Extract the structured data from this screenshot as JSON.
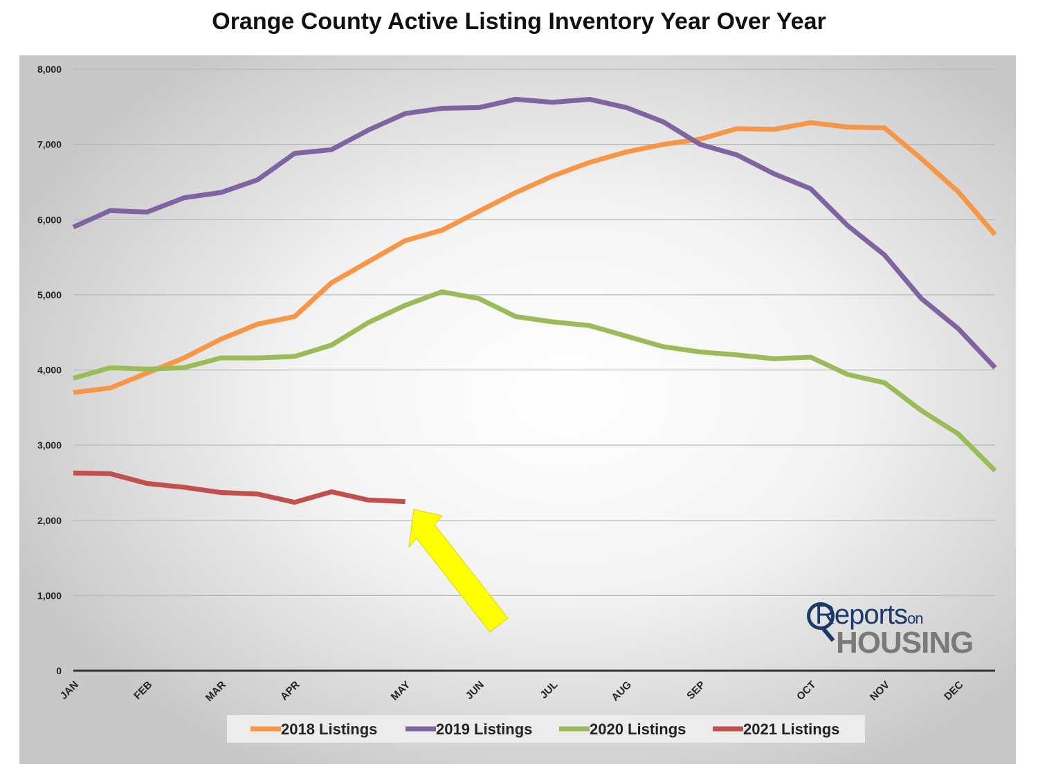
{
  "chart_data": {
    "type": "line",
    "title": "Orange County Active Listing Inventory Year Over Year",
    "xlabel": "",
    "ylabel": "",
    "ylim": [
      0,
      8000
    ],
    "yticks": [
      0,
      1000,
      2000,
      3000,
      4000,
      5000,
      6000,
      7000,
      8000
    ],
    "ytick_labels": [
      "0",
      "1,000",
      "2,000",
      "3,000",
      "4,000",
      "5,000",
      "6,000",
      "7,000",
      "8,000"
    ],
    "x_range": [
      0,
      25
    ],
    "month_ticks": [
      {
        "label": "JAN",
        "x": 0
      },
      {
        "label": "FEB",
        "x": 2
      },
      {
        "label": "MAR",
        "x": 4
      },
      {
        "label": "APR",
        "x": 6
      },
      {
        "label": "MAY",
        "x": 9
      },
      {
        "label": "JUN",
        "x": 11
      },
      {
        "label": "JUL",
        "x": 13
      },
      {
        "label": "AUG",
        "x": 15
      },
      {
        "label": "SEP",
        "x": 17
      },
      {
        "label": "OCT",
        "x": 20
      },
      {
        "label": "NOV",
        "x": 22
      },
      {
        "label": "DEC",
        "x": 24
      }
    ],
    "grid": true,
    "legend_position": "bottom",
    "series": [
      {
        "name": "2018 Listings",
        "color": "#f79646",
        "x": [
          0,
          1,
          2,
          3,
          4,
          5,
          6,
          7,
          8,
          9,
          10,
          11,
          12,
          13,
          14,
          15,
          16,
          17,
          18,
          19,
          20,
          21,
          22,
          23,
          24,
          25
        ],
        "values": [
          3700,
          3760,
          3960,
          4160,
          4410,
          4610,
          4710,
          5160,
          5440,
          5720,
          5860,
          6110,
          6360,
          6580,
          6760,
          6900,
          7000,
          7070,
          7210,
          7200,
          7290,
          7230,
          7220,
          6810,
          6370,
          5800
        ]
      },
      {
        "name": "2019 Listings",
        "color": "#8064a2",
        "x": [
          0,
          1,
          2,
          3,
          4,
          5,
          6,
          7,
          8,
          9,
          10,
          11,
          12,
          13,
          14,
          15,
          16,
          17,
          18,
          19,
          20,
          21,
          22,
          23,
          24,
          25
        ],
        "values": [
          5900,
          6120,
          6100,
          6290,
          6360,
          6530,
          6880,
          6930,
          7190,
          7410,
          7480,
          7490,
          7600,
          7560,
          7600,
          7490,
          7300,
          7000,
          6860,
          6610,
          6410,
          5920,
          5530,
          4950,
          4550,
          4030
        ]
      },
      {
        "name": "2020 Listings",
        "color": "#9bbb59",
        "x": [
          0,
          1,
          2,
          3,
          4,
          5,
          6,
          7,
          8,
          9,
          10,
          11,
          12,
          13,
          14,
          15,
          16,
          17,
          18,
          19,
          20,
          21,
          22,
          23,
          24,
          25
        ],
        "values": [
          3890,
          4030,
          4010,
          4030,
          4160,
          4160,
          4180,
          4330,
          4630,
          4860,
          5040,
          4950,
          4710,
          4640,
          4590,
          4450,
          4310,
          4240,
          4200,
          4150,
          4170,
          3940,
          3830,
          3460,
          3150,
          2660
        ]
      },
      {
        "name": "2021 Listings",
        "color": "#c0504d",
        "x": [
          0,
          1,
          2,
          3,
          4,
          5,
          6,
          7,
          8,
          9
        ],
        "values": [
          2630,
          2620,
          2490,
          2440,
          2370,
          2350,
          2240,
          2380,
          2270,
          2250
        ]
      }
    ]
  },
  "logo": {
    "line1": "Reports",
    "line1_small": "on",
    "line2": "HOUSING"
  }
}
